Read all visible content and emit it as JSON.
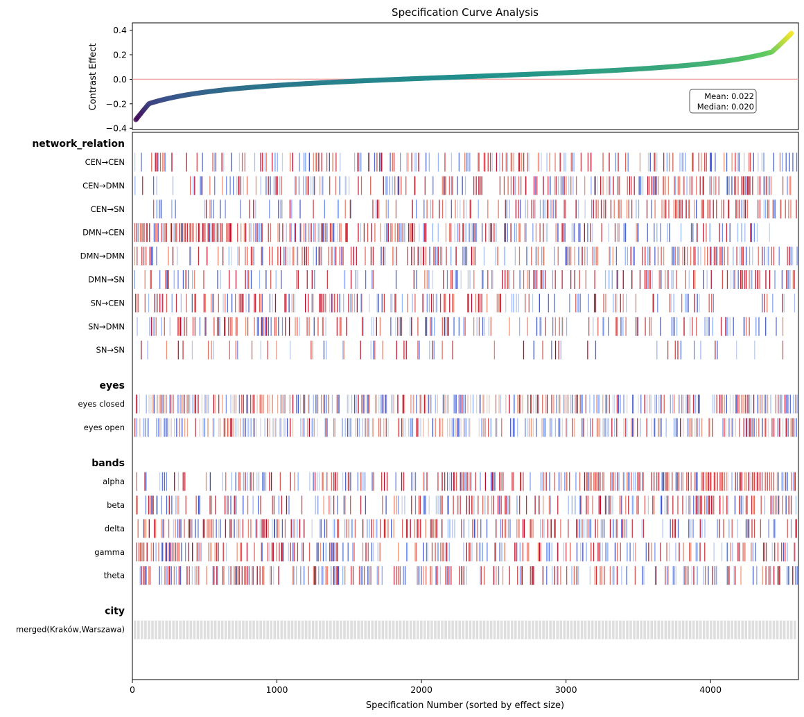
{
  "chart_data": {
    "type": "specification-curve",
    "title": "Specification Curve Analysis",
    "n_specs": 4608,
    "curve": {
      "ylabel": "Contrast Effect",
      "ylim": [
        -0.41,
        0.46
      ],
      "yticks": [
        -0.4,
        -0.2,
        0.0,
        0.2,
        0.4
      ],
      "ytick_labels": [
        "−0.4",
        "−0.2",
        "0.0",
        "0.2",
        "0.4"
      ],
      "min": -0.34,
      "max": 0.39,
      "reference_line": 0.0,
      "reference_line_color": "#f4a6a6",
      "colormap": "viridis",
      "mean_label": "Mean: 0.022",
      "median_label": "Median: 0.020",
      "mean": 0.022,
      "median": 0.02
    },
    "x_axis": {
      "label": "Specification Number (sorted by effect size)",
      "xlim": [
        0,
        4608
      ],
      "ticks": [
        0,
        1000,
        2000,
        3000,
        4000
      ],
      "tick_labels": [
        "0",
        "1000",
        "2000",
        "3000",
        "4000"
      ]
    },
    "indicator_colormap": "coolwarm",
    "groups": [
      {
        "name": "network_relation",
        "rows": [
          {
            "label": "CEN→CEN",
            "density": 0.32,
            "trend": 0.0
          },
          {
            "label": "CEN→DMN",
            "density": 0.4,
            "trend": 0.6
          },
          {
            "label": "CEN→SN",
            "density": 0.28,
            "trend": 1.0
          },
          {
            "label": "DMN→CEN",
            "density": 0.42,
            "trend": -0.9
          },
          {
            "label": "DMN→DMN",
            "density": 0.36,
            "trend": 0.0
          },
          {
            "label": "DMN→SN",
            "density": 0.32,
            "trend": 0.3
          },
          {
            "label": "SN→CEN",
            "density": 0.3,
            "trend": -0.5
          },
          {
            "label": "SN→DMN",
            "density": 0.3,
            "trend": -0.5
          },
          {
            "label": "SN→SN",
            "density": 0.1,
            "trend": -0.7
          }
        ]
      },
      {
        "name": "eyes",
        "rows": [
          {
            "label": "eyes closed",
            "density": 0.55,
            "trend": 0.0
          },
          {
            "label": "eyes open",
            "density": 0.5,
            "trend": 0.0
          }
        ]
      },
      {
        "name": "bands",
        "rows": [
          {
            "label": "alpha",
            "density": 0.4,
            "trend": 0.8
          },
          {
            "label": "beta",
            "density": 0.4,
            "trend": 0.2
          },
          {
            "label": "delta",
            "density": 0.42,
            "trend": -0.3
          },
          {
            "label": "gamma",
            "density": 0.38,
            "trend": -0.3
          },
          {
            "label": "theta",
            "density": 0.38,
            "trend": -0.2
          }
        ]
      },
      {
        "name": "city",
        "rows": [
          {
            "label": "merged(Kraków,Warszawa)",
            "density": 1.0,
            "trend": 0.0,
            "uniform_color": "#dedede"
          }
        ]
      }
    ]
  }
}
